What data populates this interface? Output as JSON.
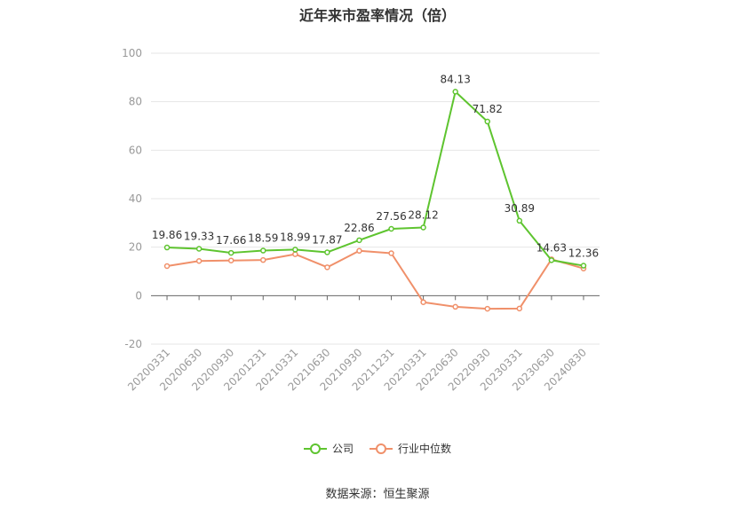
{
  "chart_data": {
    "type": "line",
    "title": "近年来市盈率情况（倍）",
    "categories": [
      "20200331",
      "20200630",
      "20200930",
      "20201231",
      "20210331",
      "20210630",
      "20210930",
      "20211231",
      "20220331",
      "20220630",
      "20220930",
      "20230331",
      "20230630",
      "20240830"
    ],
    "series": [
      {
        "name": "公司",
        "color": "#5ec42f",
        "values": [
          19.86,
          19.33,
          17.66,
          18.59,
          18.99,
          17.87,
          22.86,
          27.56,
          28.12,
          84.13,
          71.82,
          30.89,
          14.63,
          12.36
        ]
      },
      {
        "name": "行业中位数",
        "color": "#f0906a",
        "values": [
          12.2,
          14.3,
          14.5,
          14.7,
          17.1,
          11.7,
          18.5,
          17.5,
          -2.7,
          -4.6,
          -5.4,
          -5.3,
          15.0,
          11.2
        ]
      }
    ],
    "yticks": [
      -20,
      0,
      20,
      40,
      60,
      80,
      100
    ],
    "ylim": [
      -20,
      100
    ],
    "grid": true,
    "legend_position": "bottom"
  },
  "source": "数据来源：恒生聚源"
}
